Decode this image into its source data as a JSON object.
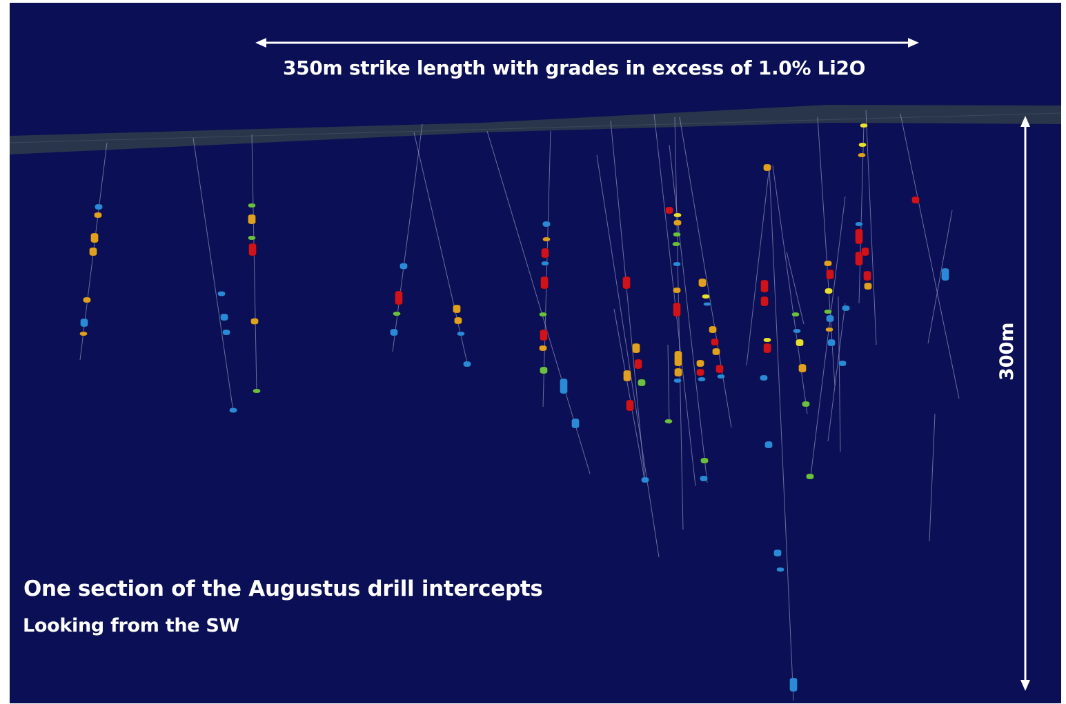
{
  "annotations": {
    "strike_length": "350m strike length with grades in excess of 1.0% Li2O",
    "depth": "300m",
    "title": "One section of the Augustus drill intercepts",
    "view_direction": "Looking from the SW"
  },
  "colors": {
    "background": "#0b0f55",
    "surface_band": "#2c3a4a",
    "drill_trace": "#8a8fb8",
    "arrow": "#ffffff",
    "grade_red": "#d0121a",
    "grade_orange": "#e0a020",
    "grade_yellow": "#e8e030",
    "grade_green": "#6cc040",
    "grade_blue": "#2a8ad8"
  }
}
